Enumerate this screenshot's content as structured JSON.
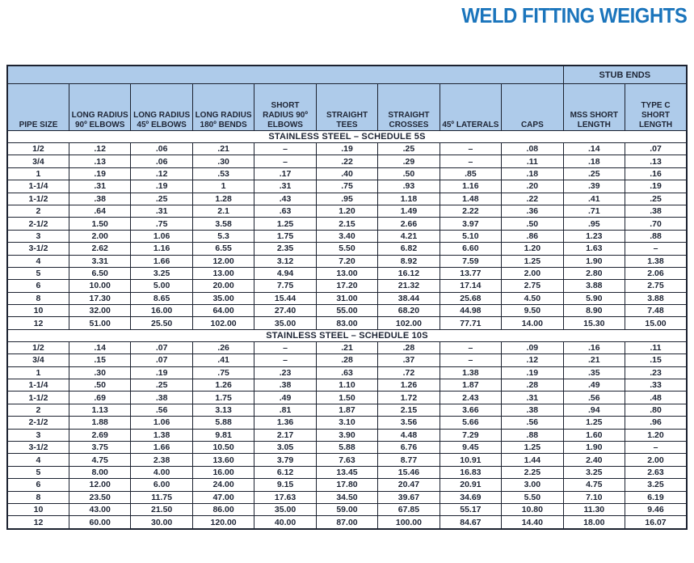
{
  "title": "WELD FITTING WEIGHTS",
  "colors": {
    "accent_blue": "#1b75bc",
    "header_bg": "#aecbea",
    "border": "#1c2230",
    "text": "#1e2535"
  },
  "table": {
    "stub_ends_label": "STUB ENDS",
    "columns": [
      "PIPE SIZE",
      "LONG RADIUS\n90º ELBOWS",
      "LONG RADIUS\n45º ELBOWS",
      "LONG RADIUS\n180º BENDS",
      "SHORT\nRADIUS 90º\nELBOWS",
      "STRAIGHT\nTEES",
      "STRAIGHT\nCROSSES",
      "45º LATERALS",
      "CAPS",
      "MSS SHORT\nLENGTH",
      "TYPE C\nSHORT\nLENGTH"
    ],
    "sections": [
      {
        "label": "STAINLESS STEEL – SCHEDULE 5S",
        "rows": [
          [
            "1/2",
            ".12",
            ".06",
            ".21",
            "–",
            ".19",
            ".25",
            "–",
            ".08",
            ".14",
            ".07"
          ],
          [
            "3/4",
            ".13",
            ".06",
            ".30",
            "–",
            ".22",
            ".29",
            "–",
            ".11",
            ".18",
            ".13"
          ],
          [
            "1",
            ".19",
            ".12",
            ".53",
            ".17",
            ".40",
            ".50",
            ".85",
            ".18",
            ".25",
            ".16"
          ],
          [
            "1-1/4",
            ".31",
            ".19",
            "1",
            ".31",
            ".75",
            ".93",
            "1.16",
            ".20",
            ".39",
            ".19"
          ],
          [
            "1-1/2",
            ".38",
            ".25",
            "1.28",
            ".43",
            ".95",
            "1.18",
            "1.48",
            ".22",
            ".41",
            ".25"
          ],
          [
            "2",
            ".64",
            ".31",
            "2.1",
            ".63",
            "1.20",
            "1.49",
            "2.22",
            ".36",
            ".71",
            ".38"
          ],
          [
            "2-1/2",
            "1.50",
            ".75",
            "3.58",
            "1.25",
            "2.15",
            "2.66",
            "3.97",
            ".50",
            ".95",
            ".70"
          ],
          [
            "3",
            "2.00",
            "1.06",
            "5.3",
            "1.75",
            "3.40",
            "4.21",
            "5.10",
            ".86",
            "1.23",
            ".88"
          ],
          [
            "3-1/2",
            "2.62",
            "1.16",
            "6.55",
            "2.35",
            "5.50",
            "6.82",
            "6.60",
            "1.20",
            "1.63",
            "–"
          ],
          [
            "4",
            "3.31",
            "1.66",
            "12.00",
            "3.12",
            "7.20",
            "8.92",
            "7.59",
            "1.25",
            "1.90",
            "1.38"
          ],
          [
            "5",
            "6.50",
            "3.25",
            "13.00",
            "4.94",
            "13.00",
            "16.12",
            "13.77",
            "2.00",
            "2.80",
            "2.06"
          ],
          [
            "6",
            "10.00",
            "5.00",
            "20.00",
            "7.75",
            "17.20",
            "21.32",
            "17.14",
            "2.75",
            "3.88",
            "2.75"
          ],
          [
            "8",
            "17.30",
            "8.65",
            "35.00",
            "15.44",
            "31.00",
            "38.44",
            "25.68",
            "4.50",
            "5.90",
            "3.88"
          ],
          [
            "10",
            "32.00",
            "16.00",
            "64.00",
            "27.40",
            "55.00",
            "68.20",
            "44.98",
            "9.50",
            "8.90",
            "7.48"
          ],
          [
            "12",
            "51.00",
            "25.50",
            "102.00",
            "35.00",
            "83.00",
            "102.00",
            "77.71",
            "14.00",
            "15.30",
            "15.00"
          ]
        ]
      },
      {
        "label": "STAINLESS STEEL – SCHEDULE 10S",
        "rows": [
          [
            "1/2",
            ".14",
            ".07",
            ".26",
            "–",
            ".21",
            ".28",
            "–",
            ".09",
            ".16",
            ".11"
          ],
          [
            "3/4",
            ".15",
            ".07",
            ".41",
            "–",
            ".28",
            ".37",
            "–",
            ".12",
            ".21",
            ".15"
          ],
          [
            "1",
            ".30",
            ".19",
            ".75",
            ".23",
            ".63",
            ".72",
            "1.38",
            ".19",
            ".35",
            ".23"
          ],
          [
            "1-1/4",
            ".50",
            ".25",
            "1.26",
            ".38",
            "1.10",
            "1.26",
            "1.87",
            ".28",
            ".49",
            ".33"
          ],
          [
            "1-1/2",
            ".69",
            ".38",
            "1.75",
            ".49",
            "1.50",
            "1.72",
            "2.43",
            ".31",
            ".56",
            ".48"
          ],
          [
            "2",
            "1.13",
            ".56",
            "3.13",
            ".81",
            "1.87",
            "2.15",
            "3.66",
            ".38",
            ".94",
            ".80"
          ],
          [
            "2-1/2",
            "1.88",
            "1.06",
            "5.88",
            "1.36",
            "3.10",
            "3.56",
            "5.66",
            ".56",
            "1.25",
            ".96"
          ],
          [
            "3",
            "2.69",
            "1.38",
            "9.81",
            "2.17",
            "3.90",
            "4.48",
            "7.29",
            ".88",
            "1.60",
            "1.20"
          ],
          [
            "3-1/2",
            "3.75",
            "1.66",
            "10.50",
            "3.05",
            "5.88",
            "6.76",
            "9.45",
            "1.25",
            "1.90",
            "–"
          ],
          [
            "4",
            "4.75",
            "2.38",
            "13.60",
            "3.79",
            "7.63",
            "8.77",
            "10.91",
            "1.44",
            "2.40",
            "2.00"
          ],
          [
            "5",
            "8.00",
            "4.00",
            "16.00",
            "6.12",
            "13.45",
            "15.46",
            "16.83",
            "2.25",
            "3.25",
            "2.63"
          ],
          [
            "6",
            "12.00",
            "6.00",
            "24.00",
            "9.15",
            "17.80",
            "20.47",
            "20.91",
            "3.00",
            "4.75",
            "3.25"
          ],
          [
            "8",
            "23.50",
            "11.75",
            "47.00",
            "17.63",
            "34.50",
            "39.67",
            "34.69",
            "5.50",
            "7.10",
            "6.19"
          ],
          [
            "10",
            "43.00",
            "21.50",
            "86.00",
            "35.00",
            "59.00",
            "67.85",
            "55.17",
            "10.80",
            "11.30",
            "9.46"
          ],
          [
            "12",
            "60.00",
            "30.00",
            "120.00",
            "40.00",
            "87.00",
            "100.00",
            "84.67",
            "14.40",
            "18.00",
            "16.07"
          ]
        ]
      }
    ]
  }
}
